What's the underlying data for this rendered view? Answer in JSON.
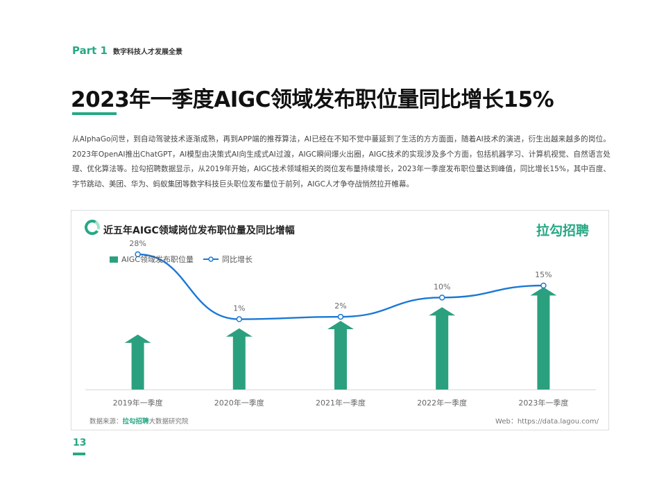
{
  "header": {
    "part_label": "Part 1",
    "part_title": "数字科技人才发展全景"
  },
  "headline": "2023年一季度AIGC领域发布职位量同比增长15%",
  "body_text": "从AlphaGo问世，到自动驾驶技术逐渐成熟，再到APP端的推荐算法，AI已经在不知不觉中蔓延到了生活的方方面面，随着AI技术的演进，衍生出越来越多的岗位。2023年OpenAI推出ChatGPT，AI模型由决策式AI向生成式AI过渡，AIGC瞬间爆火出圈，AIGC技术的实现涉及多个方面，包括机器学习、计算机视觉、自然语言处理、优化算法等。拉勾招聘数据显示，从2019年开始，AIGC技术领域相关的岗位发布量持续增长，2023年一季度发布职位量达到峰值，同比增长15%，其中百度、字节跳动、美团、华为、蚂蚁集团等数字科技巨头职位发布量位于前列，AIGC人才争夺战悄然拉开帷幕。",
  "panel": {
    "title": "近五年AIGC领域岗位发布职位量及同比增幅",
    "brand": "拉勾招聘",
    "source_prefix": "数据来源：",
    "source_brand": "拉勾招聘",
    "source_suffix": "大数据研究院",
    "web": "Web：https://data.lagou.com/"
  },
  "chart_data": {
    "type": "bar+line",
    "categories": [
      "2019年一季度",
      "2020年一季度",
      "2021年一季度",
      "2022年一季度",
      "2023年一季度"
    ],
    "series": [
      {
        "name": "AIGC领域发布职位量",
        "type": "bar",
        "values": [
          0.44,
          0.49,
          0.55,
          0.66,
          0.82
        ],
        "color": "#2ba07f"
      },
      {
        "name": "同比增长",
        "type": "line",
        "values": [
          28,
          1,
          2,
          10,
          15
        ],
        "labels": [
          "28%",
          "1%",
          "2%",
          "10%",
          "15%"
        ],
        "color": "#1a78d6"
      }
    ],
    "grid": false,
    "legend": "top-left"
  },
  "page_number": "13",
  "colors": {
    "accent": "#26a884",
    "bar": "#2ba07f",
    "line": "#1a78d6"
  }
}
